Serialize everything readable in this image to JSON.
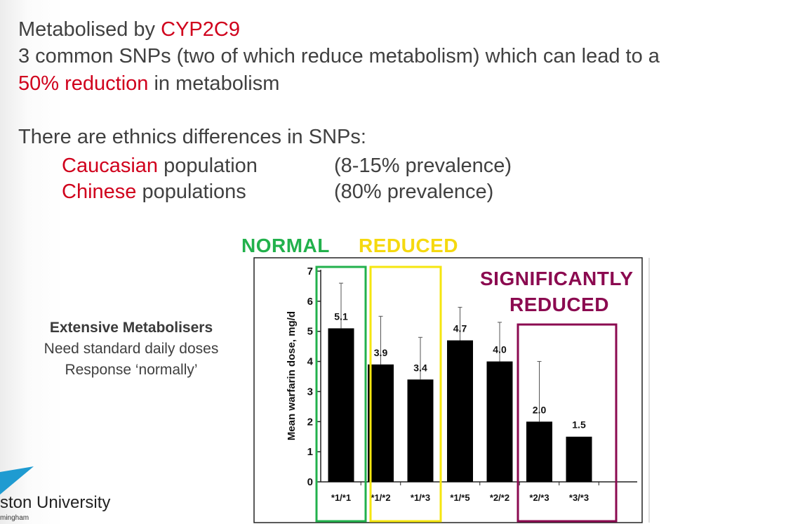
{
  "slide": {
    "line1_prefix": "Metabolised by ",
    "line1_highlight": "CYP2C9",
    "line2": "3 common SNPs (two of which reduce metabolism) which can lead to a",
    "line3_highlight": "50% reduction",
    "line3_suffix": " in metabolism",
    "line4": "There are ethnics differences in SNPs:",
    "pop1_highlight": "Caucasian",
    "pop1_suffix": " population",
    "pop1_prevalence": "(8-15% prevalence)",
    "pop2_highlight": "Chinese",
    "pop2_suffix": " populations",
    "pop2_prevalence": "(80% prevalence)"
  },
  "side_note": {
    "title": "Extensive Metabolisers",
    "line1": "Need standard daily doses",
    "line2": "Response ‘normally’"
  },
  "categories_labels": {
    "normal": "NORMAL",
    "reduced": "REDUCED",
    "sig1": "SIGNIFICANTLY",
    "sig2": "REDUCED"
  },
  "colors": {
    "red": "#d0001c",
    "normal": "#22b14c",
    "reduced": "#f5e60f",
    "significant": "#8b0a50",
    "logo": "#1f9bd1"
  },
  "logo": {
    "text": "ston University",
    "sub": "mingham"
  },
  "chart_data": {
    "type": "bar",
    "categories": [
      "*1/*1",
      "*1/*2",
      "*1/*3",
      "*1/*5",
      "*2/*2",
      "*2/*3",
      "*3/*3"
    ],
    "values": [
      5.1,
      3.9,
      3.4,
      4.7,
      4.0,
      2.0,
      1.5
    ],
    "value_labels": [
      "5.1",
      "3.9",
      "3.4",
      "4.7",
      "4.0",
      "2.0",
      "1.5"
    ],
    "error_upper": [
      6.6,
      5.5,
      4.8,
      5.8,
      5.3,
      4.0,
      1.5
    ],
    "ylabel": "Mean warfarin dose, mg/d",
    "ylim": [
      0,
      7
    ],
    "yticks": [
      "0",
      "1",
      "2",
      "3",
      "4",
      "5",
      "6",
      "7"
    ],
    "grid": false
  }
}
